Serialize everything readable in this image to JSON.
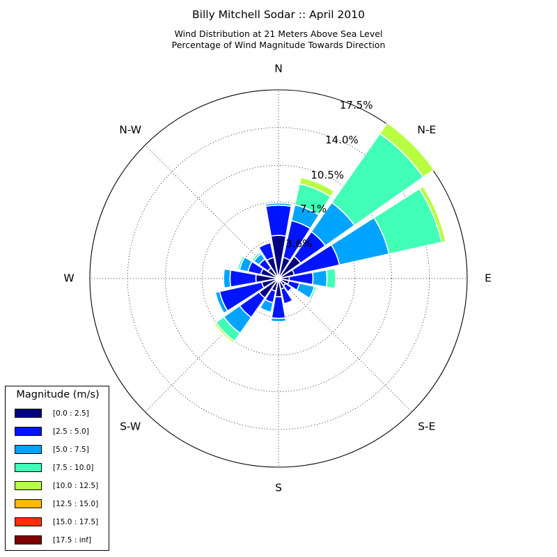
{
  "chart_data": {
    "type": "windrose",
    "title": "Billy Mitchell Sodar :: April 2010",
    "subtitle": [
      "Wind Distribution at 21 Meters Above Sea Level",
      "Percentage of Wind Magnitude Towards Direction"
    ],
    "directions": [
      {
        "label": "N",
        "angle_deg": 0
      },
      {
        "label": "N-E",
        "angle_deg": 45
      },
      {
        "label": "E",
        "angle_deg": 90
      },
      {
        "label": "S-E",
        "angle_deg": 135
      },
      {
        "label": "S",
        "angle_deg": 180
      },
      {
        "label": "S-W",
        "angle_deg": 225
      },
      {
        "label": "W",
        "angle_deg": 270
      },
      {
        "label": "N-W",
        "angle_deg": 315
      }
    ],
    "radial_ticks": [
      3.6,
      7.1,
      10.5,
      14.0,
      17.5
    ],
    "radial_tick_labels": [
      "3.6%",
      "7.1%",
      "10.5%",
      "14.0%",
      "17.5%"
    ],
    "r_max": 17.5,
    "legend": {
      "title": "Magnitude (m/s)",
      "placement": "lower-left",
      "bins": [
        {
          "label": "[0.0 : 2.5]",
          "color": "#000080"
        },
        {
          "label": "[2.5 : 5.0]",
          "color": "#0014ff"
        },
        {
          "label": "[5.0 : 7.5]",
          "color": "#00a4ff"
        },
        {
          "label": "[7.5 : 10.0]",
          "color": "#41ffb6"
        },
        {
          "label": "[10.0 : 12.5]",
          "color": "#b7ff40"
        },
        {
          "label": "[12.5 : 15.0]",
          "color": "#ffb900"
        },
        {
          "label": "[15.0 : 17.5]",
          "color": "#ff3000"
        },
        {
          "label": "[17.5 : inf]",
          "color": "#800000"
        }
      ]
    },
    "sector_width_deg": 20,
    "sectors": [
      {
        "direction_deg": 0,
        "values": [
          4.0,
          2.8,
          0.2,
          0.0,
          0.0,
          0.0,
          0.0,
          0.0
        ]
      },
      {
        "direction_deg": 22.5,
        "values": [
          2.0,
          3.5,
          1.5,
          2.0,
          0.6,
          0.0,
          0.0,
          0.0
        ]
      },
      {
        "direction_deg": 45,
        "values": [
          2.5,
          2.8,
          3.3,
          7.8,
          1.2,
          0.0,
          0.0,
          0.0
        ]
      },
      {
        "direction_deg": 67.5,
        "values": [
          1.5,
          4.3,
          4.7,
          5.0,
          0.4,
          0.0,
          0.0,
          0.0
        ]
      },
      {
        "direction_deg": 90,
        "values": [
          1.0,
          2.2,
          1.3,
          0.8,
          0.0,
          0.0,
          0.0,
          0.0
        ]
      },
      {
        "direction_deg": 112.5,
        "values": [
          1.0,
          1.0,
          1.4,
          0.2,
          0.0,
          0.0,
          0.0,
          0.0
        ]
      },
      {
        "direction_deg": 135,
        "values": [
          0.8,
          0.7,
          0.0,
          0.0,
          0.0,
          0.0,
          0.0,
          0.0
        ]
      },
      {
        "direction_deg": 157.5,
        "values": [
          1.0,
          1.4,
          0.0,
          0.0,
          0.0,
          0.0,
          0.0,
          0.0
        ]
      },
      {
        "direction_deg": 180,
        "values": [
          1.7,
          2.0,
          0.3,
          0.0,
          0.0,
          0.0,
          0.0,
          0.0
        ]
      },
      {
        "direction_deg": 202.5,
        "values": [
          1.2,
          1.1,
          0.9,
          0.0,
          0.0,
          0.0,
          0.0,
          0.0
        ]
      },
      {
        "direction_deg": 225,
        "values": [
          2.2,
          2.2,
          1.8,
          0.9,
          0.2,
          0.0,
          0.0,
          0.0
        ]
      },
      {
        "direction_deg": 247.5,
        "values": [
          1.6,
          4.0,
          0.4,
          0.0,
          0.0,
          0.0,
          0.0,
          0.0
        ]
      },
      {
        "direction_deg": 270,
        "values": [
          2.1,
          2.4,
          0.6,
          0.0,
          0.0,
          0.0,
          0.0,
          0.0
        ]
      },
      {
        "direction_deg": 292.5,
        "values": [
          1.7,
          1.2,
          0.8,
          0.2,
          0.0,
          0.0,
          0.0,
          0.0
        ]
      },
      {
        "direction_deg": 315,
        "values": [
          1.2,
          1.0,
          0.6,
          0.2,
          0.0,
          0.0,
          0.0,
          0.0
        ]
      },
      {
        "direction_deg": 337.5,
        "values": [
          2.0,
          1.4,
          0.0,
          0.0,
          0.0,
          0.0,
          0.0,
          0.0
        ]
      }
    ]
  }
}
